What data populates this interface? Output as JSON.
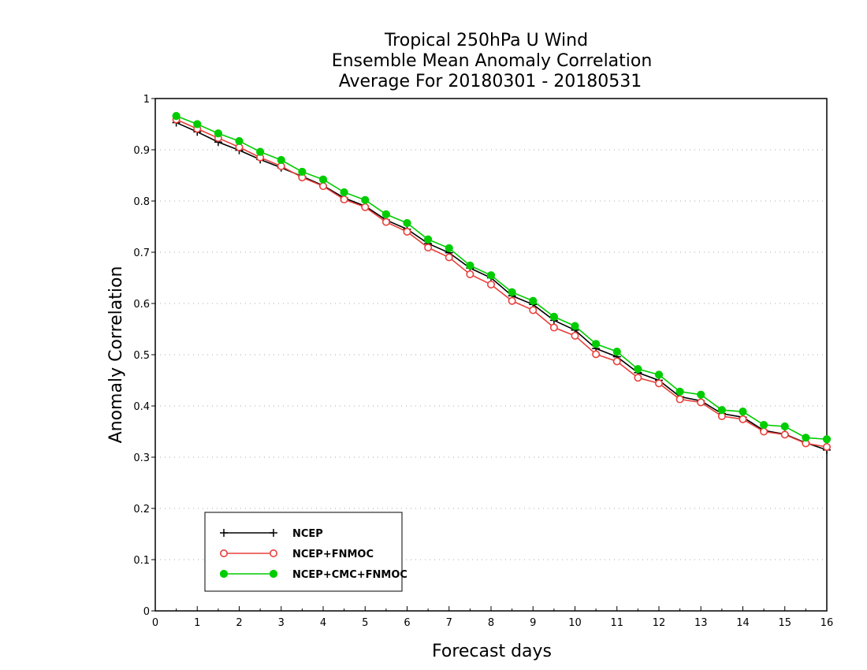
{
  "chart_data": {
    "type": "line",
    "title_lines": [
      "Tropical 250hPa U Wind",
      "Ensemble Mean Anomaly Correlation",
      "Average For 20180301 - 20180531"
    ],
    "xlabel": "Forecast days",
    "ylabel": "Anomaly Correlation",
    "xlim": [
      0,
      16
    ],
    "ylim": [
      0,
      1
    ],
    "xticks": [
      0,
      1,
      2,
      3,
      4,
      5,
      6,
      7,
      8,
      9,
      10,
      11,
      12,
      13,
      14,
      15,
      16
    ],
    "yticks": [
      0,
      0.1,
      0.2,
      0.3,
      0.4,
      0.5,
      0.6,
      0.7,
      0.8,
      0.9,
      1
    ],
    "grid": "horizontal-dotted",
    "legend_position": "bottom-left",
    "x": [
      0.5,
      1,
      1.5,
      2,
      2.5,
      3,
      3.5,
      4,
      4.5,
      5,
      5.5,
      6,
      6.5,
      7,
      7.5,
      8,
      8.5,
      9,
      9.5,
      10,
      10.5,
      11,
      11.5,
      12,
      12.5,
      13,
      13.5,
      14,
      14.5,
      15,
      15.5,
      16
    ],
    "series": [
      {
        "name": "NCEP",
        "color": "#000000",
        "marker": "plus",
        "values": [
          0.953,
          0.935,
          0.915,
          0.899,
          0.881,
          0.865,
          0.848,
          0.83,
          0.806,
          0.79,
          0.763,
          0.745,
          0.717,
          0.699,
          0.669,
          0.65,
          0.615,
          0.598,
          0.567,
          0.548,
          0.512,
          0.496,
          0.465,
          0.45,
          0.418,
          0.41,
          0.385,
          0.378,
          0.352,
          0.345,
          0.328,
          0.314
        ]
      },
      {
        "name": "NCEP+FNMOC",
        "color": "#e8403c",
        "marker": "open-circle",
        "values": [
          0.959,
          0.941,
          0.923,
          0.905,
          0.885,
          0.868,
          0.846,
          0.829,
          0.803,
          0.788,
          0.759,
          0.74,
          0.709,
          0.69,
          0.657,
          0.637,
          0.605,
          0.587,
          0.553,
          0.537,
          0.501,
          0.487,
          0.455,
          0.444,
          0.413,
          0.407,
          0.38,
          0.374,
          0.35,
          0.344,
          0.327,
          0.32
        ]
      },
      {
        "name": "NCEP+CMC+FNMOC",
        "color": "#00cc00",
        "marker": "filled-circle",
        "values": [
          0.966,
          0.95,
          0.932,
          0.917,
          0.896,
          0.88,
          0.857,
          0.842,
          0.817,
          0.802,
          0.774,
          0.757,
          0.725,
          0.708,
          0.674,
          0.655,
          0.622,
          0.605,
          0.574,
          0.556,
          0.521,
          0.506,
          0.472,
          0.461,
          0.428,
          0.422,
          0.392,
          0.389,
          0.363,
          0.36,
          0.338,
          0.335
        ]
      }
    ]
  }
}
